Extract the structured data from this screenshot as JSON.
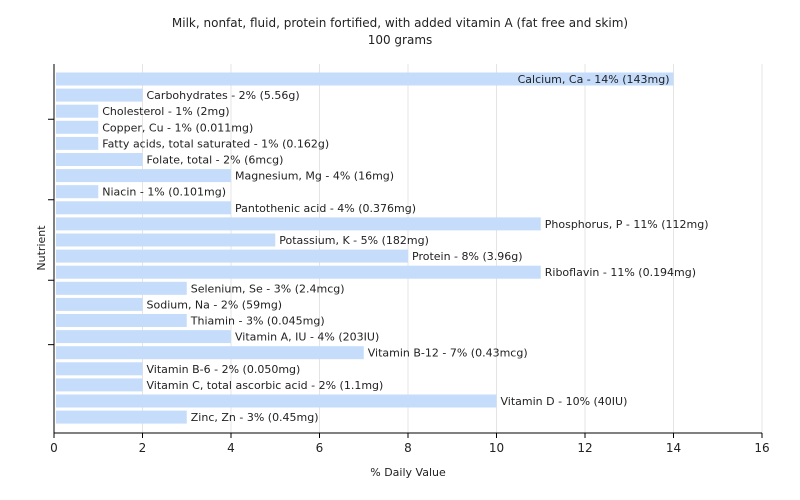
{
  "chart_data": {
    "type": "bar",
    "orientation": "horizontal",
    "title": "Milk, nonfat, fluid, protein fortified, with added vitamin A (fat free and skim)",
    "subtitle": "100 grams",
    "xlabel": "% Daily Value",
    "ylabel": "Nutrient",
    "xlim": [
      0,
      16
    ],
    "xticks": [
      0,
      2,
      4,
      6,
      8,
      10,
      12,
      14,
      16
    ],
    "grid": true,
    "bar_color": "#c5dcfb",
    "grid_color": "#e4e4e4",
    "categories": [
      "Calcium, Ca",
      "Carbohydrates",
      "Cholesterol",
      "Copper, Cu",
      "Fatty acids, total saturated",
      "Folate, total",
      "Magnesium, Mg",
      "Niacin",
      "Pantothenic acid",
      "Phosphorus, P",
      "Potassium, K",
      "Protein",
      "Riboflavin",
      "Selenium, Se",
      "Sodium, Na",
      "Thiamin",
      "Vitamin A, IU",
      "Vitamin B-12",
      "Vitamin B-6",
      "Vitamin C, total ascorbic acid",
      "Vitamin D",
      "Zinc, Zn"
    ],
    "values": [
      14,
      2,
      1,
      1,
      1,
      2,
      4,
      1,
      4,
      11,
      5,
      8,
      11,
      3,
      2,
      3,
      4,
      7,
      2,
      2,
      10,
      3
    ],
    "labels": [
      "Calcium, Ca - 14% (143mg)",
      "Carbohydrates - 2% (5.56g)",
      "Cholesterol - 1% (2mg)",
      "Copper, Cu - 1% (0.011mg)",
      "Fatty acids, total saturated - 1% (0.162g)",
      "Folate, total - 2% (6mcg)",
      "Magnesium, Mg - 4% (16mg)",
      "Niacin - 1% (0.101mg)",
      "Pantothenic acid - 4% (0.376mg)",
      "Phosphorus, P - 11% (112mg)",
      "Potassium, K - 5% (182mg)",
      "Protein - 8% (3.96g)",
      "Riboflavin - 11% (0.194mg)",
      "Selenium, Se - 3% (2.4mcg)",
      "Sodium, Na - 2% (59mg)",
      "Thiamin - 3% (0.045mg)",
      "Vitamin A, IU - 4% (203IU)",
      "Vitamin B-12 - 7% (0.43mcg)",
      "Vitamin B-6 - 2% (0.050mg)",
      "Vitamin C, total ascorbic acid - 2% (1.1mg)",
      "Vitamin D - 10% (40IU)",
      "Zinc, Zn - 3% (0.45mg)"
    ]
  }
}
